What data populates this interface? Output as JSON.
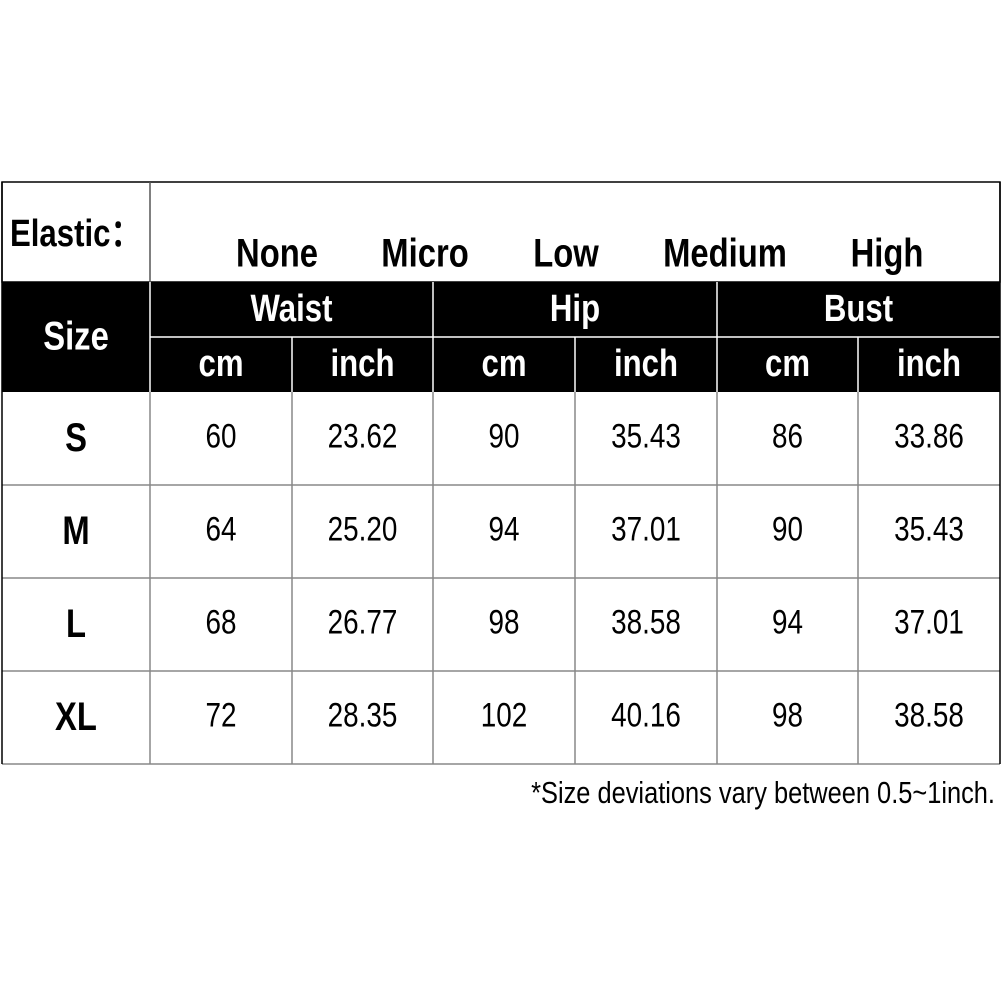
{
  "elastic": {
    "label": "Elastic：",
    "options": [
      "None",
      "Micro",
      "Low",
      "Medium",
      "High"
    ]
  },
  "table": {
    "size_header": "Size",
    "groups": [
      {
        "name": "Waist",
        "units": [
          "cm",
          "inch"
        ]
      },
      {
        "name": "Hip",
        "units": [
          "cm",
          "inch"
        ]
      },
      {
        "name": "Bust",
        "units": [
          "cm",
          "inch"
        ]
      }
    ],
    "rows": [
      [
        "S",
        "60",
        "23.62",
        "90",
        "35.43",
        "86",
        "33.86"
      ],
      [
        "M",
        "64",
        "25.20",
        "94",
        "37.01",
        "90",
        "35.43"
      ],
      [
        "L",
        "68",
        "26.77",
        "98",
        "38.58",
        "94",
        "37.01"
      ],
      [
        "XL",
        "72",
        "28.35",
        "102",
        "40.16",
        "98",
        "38.58"
      ]
    ]
  },
  "note": "*Size deviations vary between 0.5~1inch."
}
